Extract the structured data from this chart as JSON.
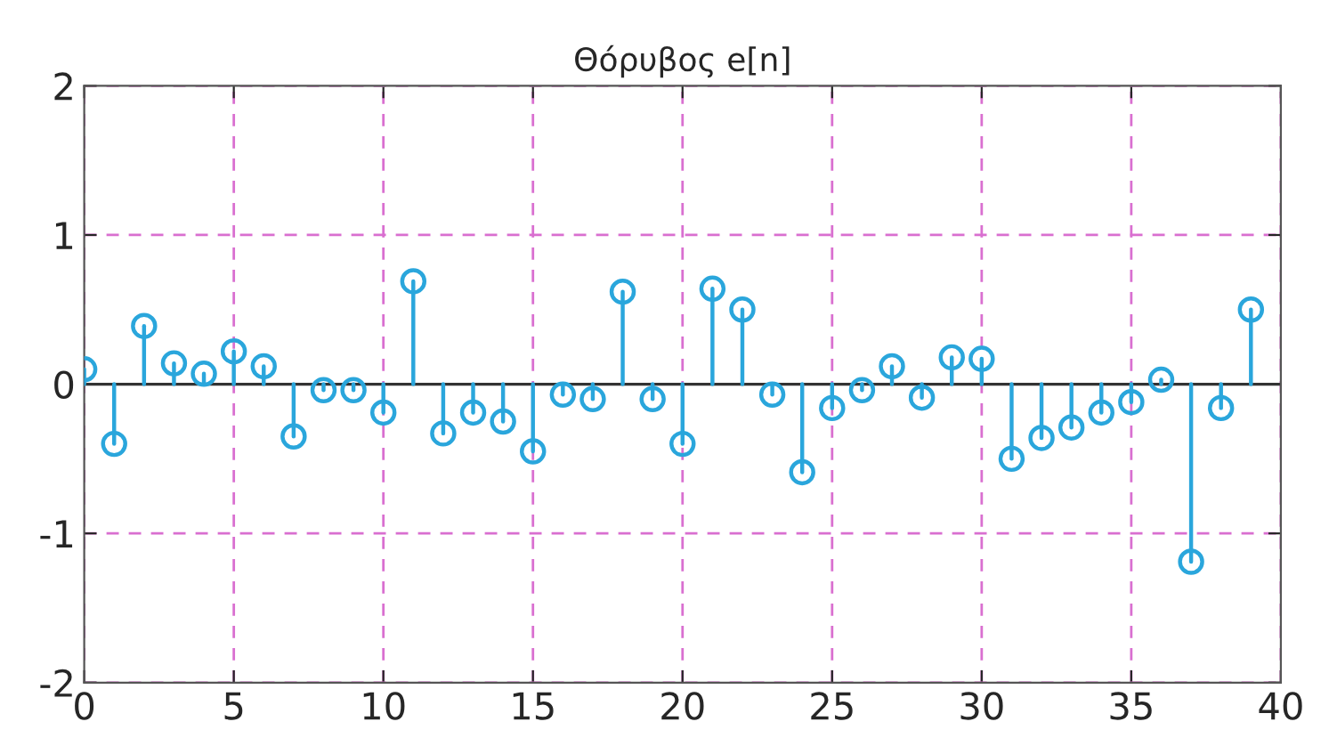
{
  "chart_data": {
    "type": "lollipop",
    "title": "Θόρυβος e[n]",
    "x": [
      0,
      1,
      2,
      3,
      4,
      5,
      6,
      7,
      8,
      9,
      10,
      11,
      12,
      13,
      14,
      15,
      16,
      17,
      18,
      19,
      20,
      21,
      22,
      23,
      24,
      25,
      26,
      27,
      28,
      29,
      30,
      31,
      32,
      33,
      34,
      35,
      36,
      37,
      38,
      39
    ],
    "values": [
      0.1,
      -0.4,
      0.39,
      0.14,
      0.07,
      0.22,
      0.12,
      -0.35,
      -0.04,
      -0.04,
      -0.19,
      0.69,
      -0.33,
      -0.19,
      -0.25,
      -0.45,
      -0.07,
      -0.1,
      0.62,
      -0.1,
      -0.4,
      0.64,
      0.5,
      -0.07,
      -0.59,
      -0.16,
      -0.04,
      0.12,
      -0.09,
      0.18,
      0.17,
      -0.5,
      -0.36,
      -0.29,
      -0.19,
      -0.12,
      0.03,
      -1.19,
      -0.16,
      0.5
    ],
    "color": "#2aa6dc",
    "marker": "circle",
    "xlim": [
      0,
      40
    ],
    "xticks": [
      0,
      5,
      10,
      15,
      20,
      25,
      30,
      35,
      40
    ],
    "ylim": [
      -2,
      2
    ],
    "yticks": [
      -2,
      -1,
      0,
      1,
      2
    ],
    "grid": true
  }
}
